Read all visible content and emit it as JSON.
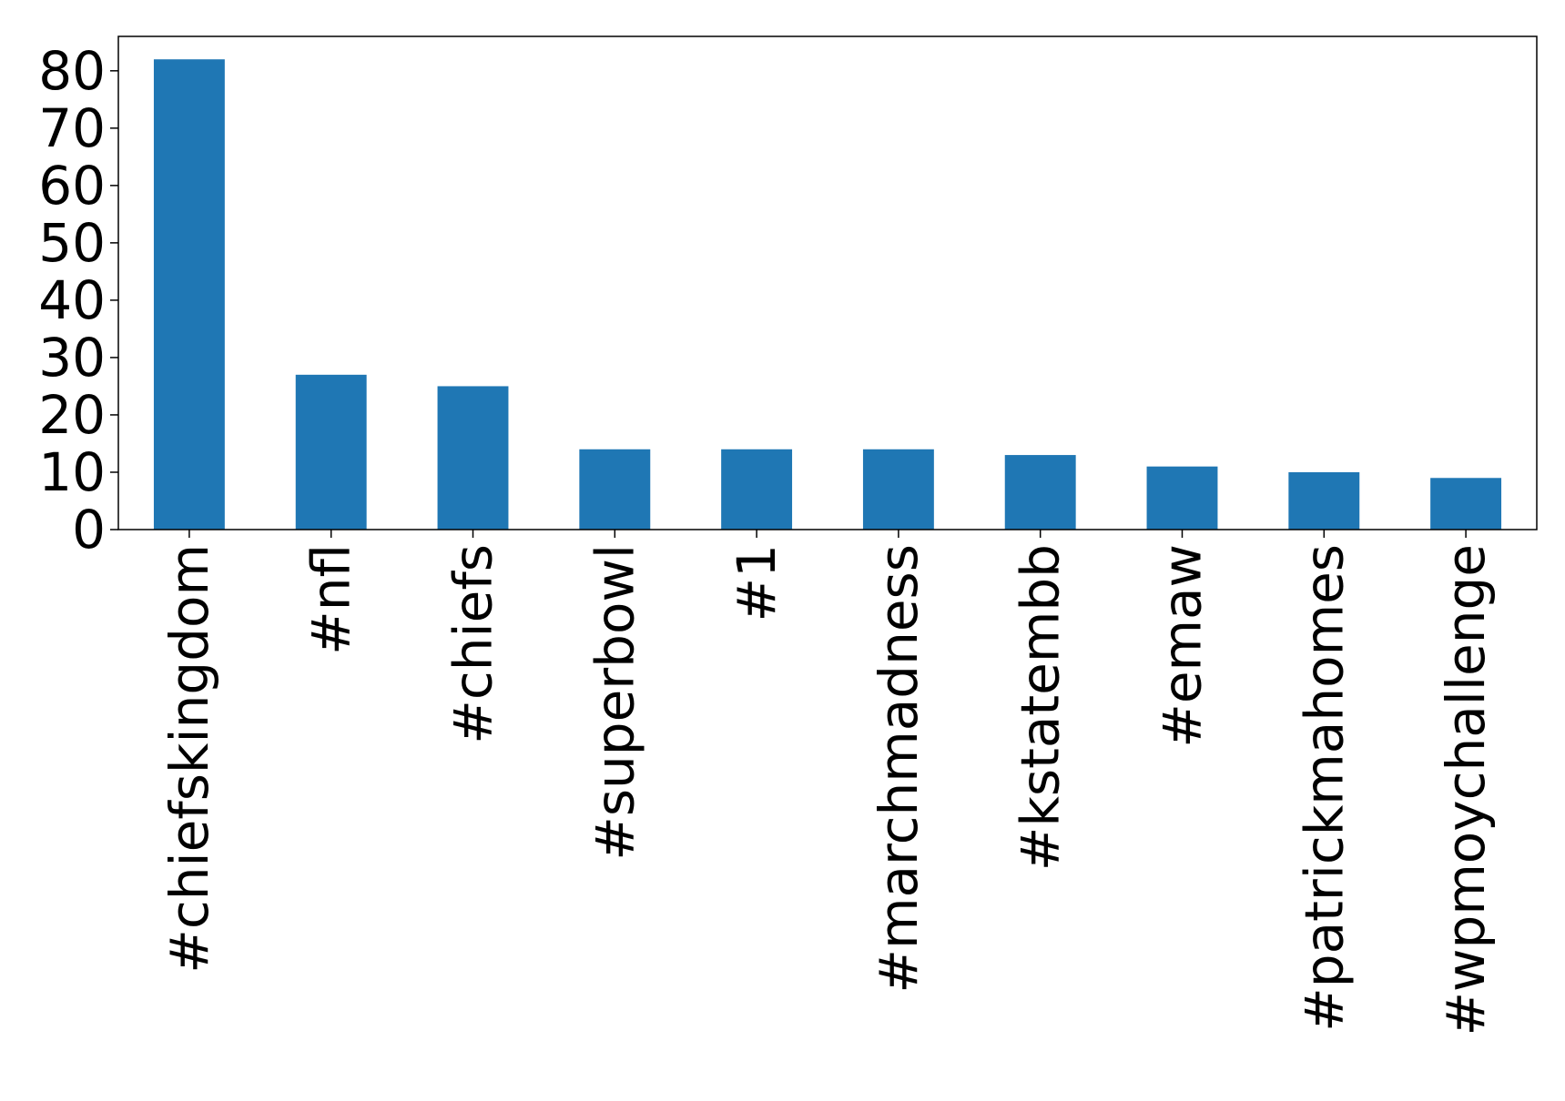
{
  "chart_data": {
    "type": "bar",
    "categories": [
      "#chiefskingdom",
      "#nfl",
      "#chiefs",
      "#superbowl",
      "#1",
      "#marchmadness",
      "#kstatembb",
      "#emaw",
      "#patrickmahomes",
      "#wpmoychallenge"
    ],
    "series": [
      {
        "values": [
          82,
          27,
          25,
          14,
          14,
          14,
          13,
          11,
          10,
          9
        ]
      }
    ],
    "title": "",
    "xlabel": "",
    "ylabel": "",
    "ylim": [
      0,
      86
    ],
    "yticks": [
      0,
      10,
      20,
      30,
      40,
      50,
      60,
      70,
      80
    ],
    "grid": false,
    "bar_color": "#1f77b4",
    "axis_color": "#000000"
  }
}
